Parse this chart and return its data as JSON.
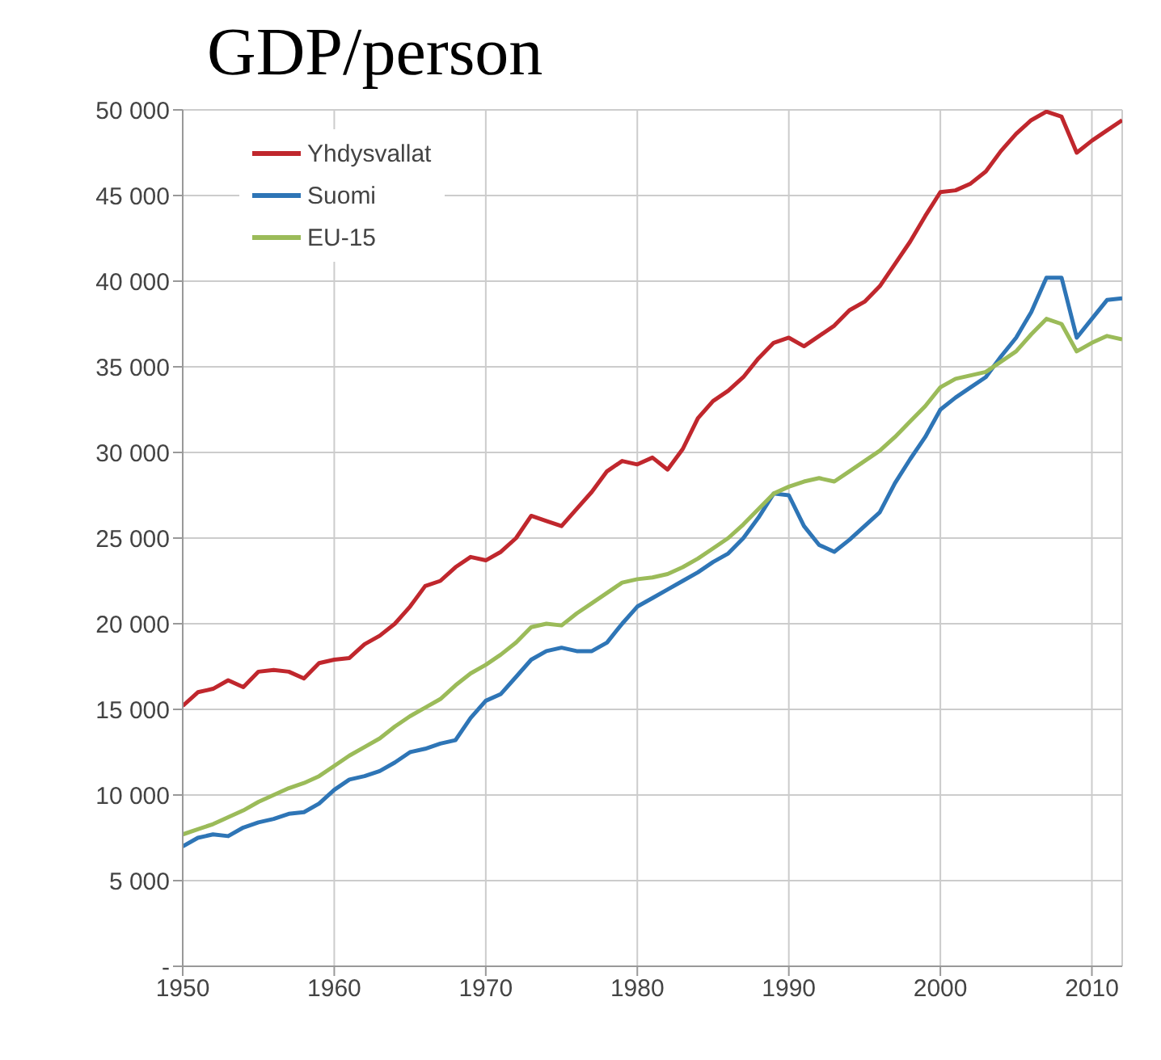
{
  "chart_data": {
    "type": "line",
    "title": "GDP/person",
    "x": [
      1950,
      1951,
      1952,
      1953,
      1954,
      1955,
      1956,
      1957,
      1958,
      1959,
      1960,
      1961,
      1962,
      1963,
      1964,
      1965,
      1966,
      1967,
      1968,
      1969,
      1970,
      1971,
      1972,
      1973,
      1974,
      1975,
      1976,
      1977,
      1978,
      1979,
      1980,
      1981,
      1982,
      1983,
      1984,
      1985,
      1986,
      1987,
      1988,
      1989,
      1990,
      1991,
      1992,
      1993,
      1994,
      1995,
      1996,
      1997,
      1998,
      1999,
      2000,
      2001,
      2002,
      2003,
      2004,
      2005,
      2006,
      2007,
      2008,
      2009,
      2010,
      2011,
      2012
    ],
    "series": [
      {
        "name": "Yhdysvallat",
        "color": "#c0272d",
        "values": [
          15200,
          16000,
          16200,
          16700,
          16300,
          17200,
          17300,
          17200,
          16800,
          17700,
          17900,
          18000,
          18800,
          19300,
          20000,
          21000,
          22200,
          22500,
          23300,
          23900,
          23700,
          24200,
          25000,
          26300,
          26000,
          25700,
          26700,
          27700,
          28900,
          29500,
          29300,
          29700,
          29000,
          30200,
          32000,
          33000,
          33600,
          34400,
          35500,
          36400,
          36700,
          36200,
          36800,
          37400,
          38300,
          38800,
          39700,
          41000,
          42300,
          43800,
          45200,
          45300,
          45700,
          46400,
          47600,
          48600,
          49400,
          49900,
          49600,
          47500,
          48200,
          48800,
          49400
        ]
      },
      {
        "name": "Suomi",
        "color": "#2e75b6",
        "values": [
          7000,
          7500,
          7700,
          7600,
          8100,
          8400,
          8600,
          8900,
          9000,
          9500,
          10300,
          10900,
          11100,
          11400,
          11900,
          12500,
          12700,
          13000,
          13200,
          14500,
          15500,
          15900,
          16900,
          17900,
          18400,
          18600,
          18400,
          18400,
          18900,
          20000,
          21000,
          21500,
          22000,
          22500,
          23000,
          23600,
          24100,
          25000,
          26200,
          27600,
          27500,
          25700,
          24600,
          24200,
          24900,
          25700,
          26500,
          28200,
          29600,
          30900,
          32500,
          33200,
          33800,
          34400,
          35600,
          36700,
          38200,
          40200,
          40200,
          36700,
          37800,
          38900,
          39000
        ]
      },
      {
        "name": "EU-15",
        "color": "#9bbb59",
        "values": [
          7700,
          8000,
          8300,
          8700,
          9100,
          9600,
          10000,
          10400,
          10700,
          11100,
          11700,
          12300,
          12800,
          13300,
          14000,
          14600,
          15100,
          15600,
          16400,
          17100,
          17600,
          18200,
          18900,
          19800,
          20000,
          19900,
          20600,
          21200,
          21800,
          22400,
          22600,
          22700,
          22900,
          23300,
          23800,
          24400,
          25000,
          25800,
          26700,
          27600,
          28000,
          28300,
          28500,
          28300,
          28900,
          29500,
          30100,
          30900,
          31800,
          32700,
          33800,
          34300,
          34500,
          34700,
          35300,
          35900,
          36900,
          37800,
          37500,
          35900,
          36400,
          36800,
          36600
        ]
      }
    ],
    "xlim": [
      1950,
      2012
    ],
    "xticks": [
      1950,
      1960,
      1970,
      1980,
      1990,
      2000,
      2010
    ],
    "ylim": [
      0,
      50000
    ],
    "yticks": [
      {
        "value": 0,
        "label": "-"
      },
      {
        "value": 5000,
        "label": "5 000"
      },
      {
        "value": 10000,
        "label": "10 000"
      },
      {
        "value": 15000,
        "label": "15 000"
      },
      {
        "value": 20000,
        "label": "20 000"
      },
      {
        "value": 25000,
        "label": "25 000"
      },
      {
        "value": 30000,
        "label": "30 000"
      },
      {
        "value": 35000,
        "label": "35 000"
      },
      {
        "value": 40000,
        "label": "40 000"
      },
      {
        "value": 45000,
        "label": "45 000"
      },
      {
        "value": 50000,
        "label": "50 000"
      }
    ],
    "grid": true,
    "legend": "top left",
    "marker": "none",
    "line_style": "solid"
  }
}
